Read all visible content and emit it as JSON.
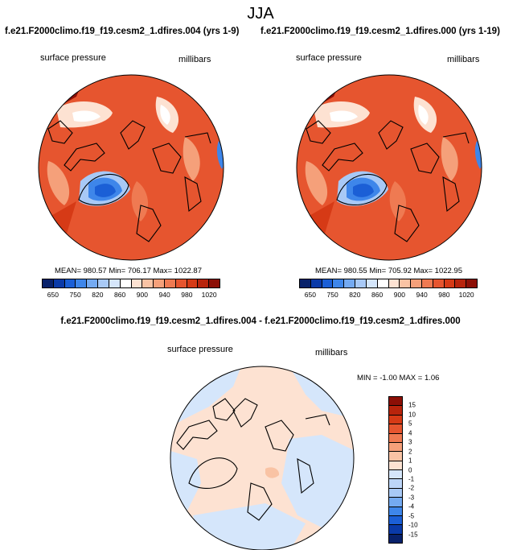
{
  "figure": {
    "season": "JJA",
    "runs": [
      {
        "title": "f.e21.F2000climo.f19_f19.cesm2_1.dfires.004 (yrs 1-9)",
        "variable": "surface pressure",
        "units": "millibars",
        "stats": "MEAN= 980.57   Min= 706.17   Max= 1022.87"
      },
      {
        "title": "f.e21.F2000climo.f19_f19.cesm2_1.dfires.000 (yrs 1-19)",
        "variable": "surface pressure",
        "units": "millibars",
        "stats": "MEAN= 980.55   Min= 705.92   Max= 1022.95"
      }
    ],
    "difference": {
      "title": "f.e21.F2000climo.f19_f19.cesm2_1.dfires.004 - f.e21.F2000climo.f19_f19.cesm2_1.dfires.000",
      "variable": "surface pressure",
      "units": "millibars",
      "stats": "MIN =  -1.00  MAX =   1.06"
    },
    "colorbar_main": {
      "colors": [
        "#08216b",
        "#0a3aa8",
        "#1b5fd6",
        "#3e86ea",
        "#74aaf1",
        "#a8c9f6",
        "#d5e6fb",
        "#ffffff",
        "#fde2d2",
        "#f9c3a4",
        "#f5a07a",
        "#ef7a52",
        "#e6552f",
        "#d63a16",
        "#b8240c",
        "#8c0f06"
      ],
      "tick_labels": [
        "650",
        "750",
        "820",
        "860",
        "900",
        "940",
        "980",
        "1020"
      ]
    },
    "colorbar_diff": {
      "tick_labels": [
        "15",
        "10",
        "5",
        "4",
        "3",
        "2",
        "1",
        "0",
        "-1",
        "-2",
        "-3",
        "-4",
        "-5",
        "-10",
        "-15"
      ],
      "colors": [
        "#8c0f06",
        "#b8240c",
        "#d63a16",
        "#e6552f",
        "#ef7a52",
        "#f5a07a",
        "#f9c3a4",
        "#fde2d2",
        "#d5e6fb",
        "#bcd5f8",
        "#a8c9f6",
        "#74aaf1",
        "#3e86ea",
        "#1b5fd6",
        "#0a3aa8",
        "#08216b"
      ]
    }
  }
}
